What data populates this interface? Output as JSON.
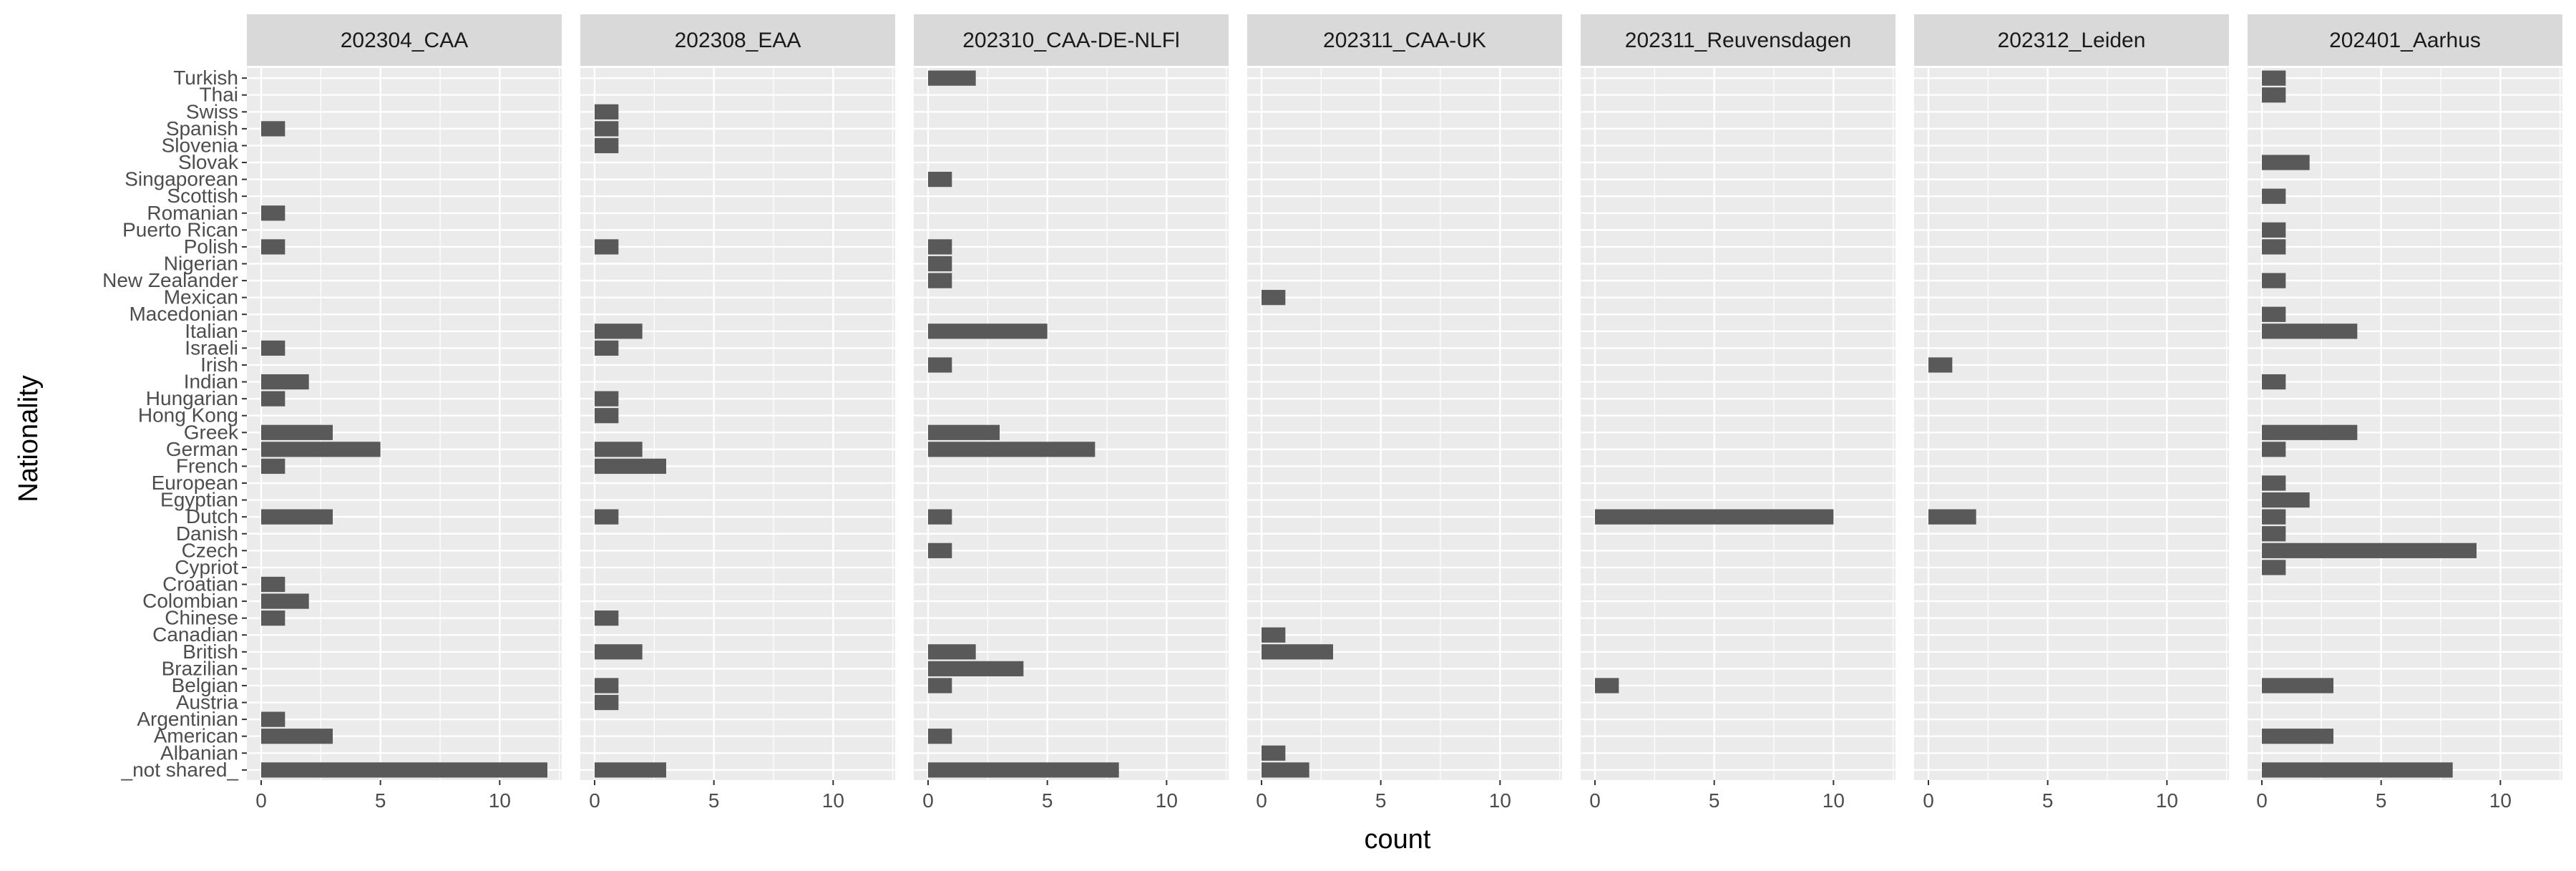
{
  "chart_data": {
    "type": "bar",
    "orientation": "horizontal",
    "xlabel": "count",
    "ylabel": "Nationality",
    "xlim": [
      -0.6,
      12.6
    ],
    "x_ticks": [
      0,
      5,
      10
    ],
    "grid": true,
    "bar_color": "#595959",
    "panel_background": "#ebebeb",
    "strip_background": "#d9d9d9",
    "categories": [
      "_not shared_",
      "Albanian",
      "American",
      "Argentinian",
      "Austria",
      "Belgian",
      "Brazilian",
      "British",
      "Canadian",
      "Chinese",
      "Colombian",
      "Croatian",
      "Cypriot",
      "Czech",
      "Danish",
      "Dutch",
      "Egyptian",
      "European",
      "French",
      "German",
      "Greek",
      "Hong Kong",
      "Hungarian",
      "Indian",
      "Irish",
      "Israeli",
      "Italian",
      "Macedonian",
      "Mexican",
      "New Zealander",
      "Nigerian",
      "Polish",
      "Puerto Rican",
      "Romanian",
      "Scottish",
      "Singaporean",
      "Slovak",
      "Slovenia",
      "Spanish",
      "Swiss",
      "Thai",
      "Turkish"
    ],
    "panels": [
      {
        "name": "202304_CAA",
        "values": {
          "_not shared_": 12,
          "American": 3,
          "Argentinian": 1,
          "Chinese": 1,
          "Colombian": 2,
          "Croatian": 1,
          "Dutch": 3,
          "French": 1,
          "German": 5,
          "Greek": 3,
          "Hungarian": 1,
          "Indian": 2,
          "Israeli": 1,
          "Polish": 1,
          "Romanian": 1,
          "Spanish": 1
        }
      },
      {
        "name": "202308_EAA",
        "values": {
          "_not shared_": 3,
          "Austria": 1,
          "Belgian": 1,
          "British": 2,
          "Chinese": 1,
          "Dutch": 1,
          "French": 3,
          "German": 2,
          "Hong Kong": 1,
          "Hungarian": 1,
          "Israeli": 1,
          "Italian": 2,
          "Polish": 1,
          "Slovenia": 1,
          "Spanish": 1,
          "Swiss": 1
        }
      },
      {
        "name": "202310_CAA-DE-NLFl",
        "values": {
          "_not shared_": 8,
          "American": 1,
          "Belgian": 1,
          "Brazilian": 4,
          "British": 2,
          "Czech": 1,
          "Dutch": 1,
          "German": 7,
          "Greek": 3,
          "Irish": 1,
          "Italian": 5,
          "New Zealander": 1,
          "Nigerian": 1,
          "Polish": 1,
          "Singaporean": 1,
          "Turkish": 2
        }
      },
      {
        "name": "202311_CAA-UK",
        "values": {
          "_not shared_": 2,
          "Albanian": 1,
          "British": 3,
          "Canadian": 1,
          "Mexican": 1
        }
      },
      {
        "name": "202311_Reuvensdagen",
        "values": {
          "Belgian": 1,
          "Dutch": 10
        }
      },
      {
        "name": "202312_Leiden",
        "values": {
          "Dutch": 2,
          "Irish": 1
        }
      },
      {
        "name": "202401_Aarhus",
        "values": {
          "_not shared_": 8,
          "American": 3,
          "Belgian": 3,
          "Cypriot": 1,
          "Czech": 9,
          "Danish": 1,
          "Dutch": 1,
          "Egyptian": 2,
          "European": 1,
          "German": 1,
          "Greek": 4,
          "Indian": 1,
          "Italian": 4,
          "Macedonian": 1,
          "New Zealander": 1,
          "Polish": 1,
          "Puerto Rican": 1,
          "Scottish": 1,
          "Slovak": 2,
          "Thai": 1,
          "Turkish": 1
        }
      }
    ]
  }
}
